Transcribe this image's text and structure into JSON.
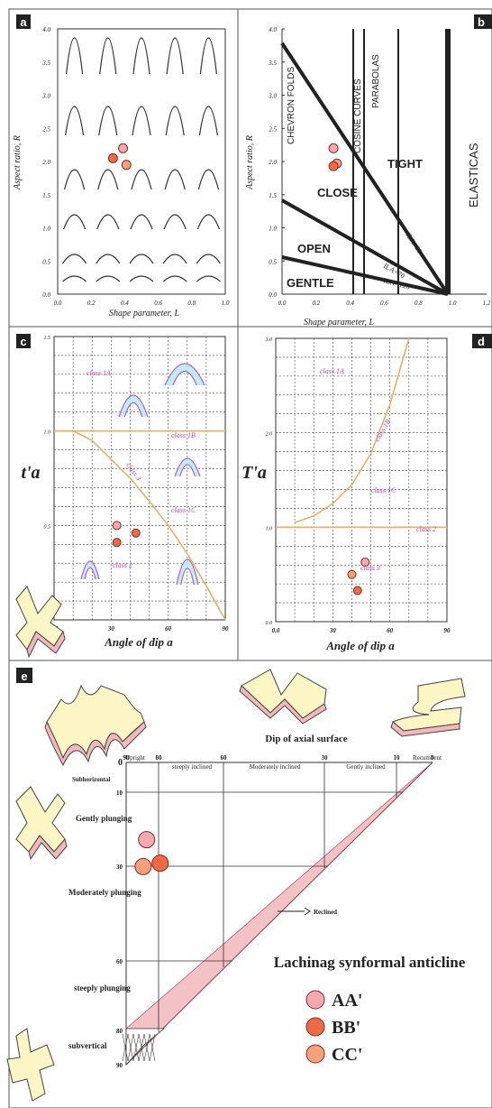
{
  "colors": {
    "orange": "#e8b060",
    "magenta": "#cc55bb",
    "cyan": "#aeeef2",
    "pinkLight": "#f5a8b0",
    "orangeRed": "#ee6a45",
    "peach": "#f7a07a",
    "ribbon": "#f2b8bb",
    "fold": "#fbf6c4"
  },
  "panels": {
    "a": "a",
    "b": "b",
    "c": "c",
    "d": "d",
    "e": "e"
  },
  "chart_data": [
    {
      "panel": "a",
      "type": "scatter",
      "xlabel": "Shape parameter, L",
      "ylabel": "Aspect ratio, R",
      "xlim": [
        0,
        1
      ],
      "ylim": [
        0,
        4
      ],
      "xticks": [
        "0.0",
        "0.2",
        "0.4",
        "0.6",
        "0.8",
        "1.0"
      ],
      "yticks": [
        "0.0",
        "0.5",
        "1.0",
        "1.5",
        "2.0",
        "2.5",
        "3.0",
        "3.5",
        "4.0"
      ],
      "shape_grid": {
        "L": [
          0.1,
          0.3,
          0.5,
          0.7,
          0.9
        ],
        "R": [
          0.2,
          0.4,
          0.8,
          1.6,
          2.4,
          3.6
        ]
      },
      "points": [
        {
          "x": 0.33,
          "y": 2.05
        },
        {
          "x": 0.39,
          "y": 2.2
        },
        {
          "x": 0.41,
          "y": 1.95
        }
      ]
    },
    {
      "panel": "b",
      "type": "scatter",
      "xlabel": "Shape parameter, L",
      "ylabel": "Aspect ratio, R",
      "xlim": [
        0,
        1.2
      ],
      "ylim": [
        0,
        4
      ],
      "xticks": [
        "0.0",
        "0.2",
        "0.4",
        "0.6",
        "0.8",
        "1.0",
        "1.2"
      ],
      "yticks": [
        "0.0",
        "0.5",
        "1.0",
        "1.5",
        "2.0",
        "2.5",
        "3.0",
        "3.5",
        "4.0"
      ],
      "vertical_labels": [
        "CHEVRON FOLDS",
        "COSINE CURVES",
        "PARABOLAS",
        "ELASTICAS"
      ],
      "regions": [
        "TIGHT",
        "CLOSE",
        "OPEN",
        "GENTLE"
      ],
      "ila_labels": [
        "ILA=30",
        "ILA=70",
        "ILA=120"
      ],
      "points": [
        {
          "x": 0.27,
          "y": 2.2
        },
        {
          "x": 0.29,
          "y": 1.97
        },
        {
          "x": 0.27,
          "y": 1.93
        }
      ]
    },
    {
      "panel": "c",
      "type": "line",
      "xlabel": "Angle of dip a",
      "ylabel": "t'a",
      "xlim": [
        0,
        90
      ],
      "ylim": [
        0,
        1.5
      ],
      "xticks": [
        "0.0",
        "30",
        "60",
        "90"
      ],
      "yticks": [
        "0.0",
        "0.5",
        "1.0",
        "1.5"
      ],
      "class_labels": [
        "class 1A",
        "class 1B",
        "class 1C",
        "class 2",
        "class 3"
      ],
      "series": [
        {
          "x": [
            0,
            10,
            20,
            30,
            40,
            50,
            60,
            70,
            80,
            90
          ],
          "y": [
            1.0,
            1.0,
            0.95,
            0.85,
            0.75,
            0.63,
            0.5,
            0.35,
            0.18,
            0.0
          ]
        },
        {
          "x": [
            0,
            90
          ],
          "y": [
            1.0,
            1.0
          ]
        }
      ],
      "points": [
        {
          "x": 33,
          "y": 0.5
        },
        {
          "x": 33,
          "y": 0.41
        },
        {
          "x": 43,
          "y": 0.46
        }
      ]
    },
    {
      "panel": "d",
      "type": "line",
      "xlabel": "Angle of dip a",
      "ylabel": "T'a",
      "xlim": [
        0,
        90
      ],
      "ylim": [
        0,
        3
      ],
      "xticks": [
        "0.0",
        "30",
        "60",
        "90"
      ],
      "yticks": [
        "0.0",
        "1.0",
        "2.0",
        "3.0"
      ],
      "class_labels": [
        "class 1A",
        "class 1B",
        "class 1C",
        "class 2",
        "class 3"
      ],
      "series": [
        {
          "x": [
            10,
            20,
            30,
            40,
            50,
            60,
            65,
            70
          ],
          "y": [
            1.05,
            1.12,
            1.25,
            1.45,
            1.78,
            2.3,
            2.65,
            3.0
          ]
        },
        {
          "x": [
            0,
            90
          ],
          "y": [
            1.0,
            1.0
          ]
        }
      ],
      "points": [
        {
          "x": 47,
          "y": 0.63
        },
        {
          "x": 40,
          "y": 0.5
        },
        {
          "x": 43,
          "y": 0.33
        }
      ]
    },
    {
      "panel": "e",
      "type": "scatter",
      "title": "Dip of axial surface",
      "x_dir_ticks": [
        "90",
        "80",
        "60",
        "30",
        "10",
        "0"
      ],
      "y_plunge_ticks": [
        "0",
        "10",
        "30",
        "60",
        "80",
        "90"
      ],
      "dip_classes": [
        "Upright",
        "steeply inclined",
        "Moderately inclined",
        "Gently inclined",
        "Recumbent"
      ],
      "plunge_classes": [
        "Subhorizontal",
        "Gently plunging",
        "Moderately plunging",
        "steeply plunging",
        "subvertical"
      ],
      "annotation": "Reclined",
      "legend_title": "Lachinag synformal anticline",
      "legend": [
        {
          "name": "AA'",
          "color": "#f5a8b0"
        },
        {
          "name": "BB'",
          "color": "#ee6a45"
        },
        {
          "name": "CC'",
          "color": "#f7a07a"
        }
      ],
      "points": [
        {
          "name": "AA'",
          "dip": 84,
          "plunge": 23
        },
        {
          "name": "BB'",
          "dip": 80,
          "plunge": 30
        },
        {
          "name": "CC'",
          "dip": 85,
          "plunge": 31
        }
      ]
    }
  ]
}
